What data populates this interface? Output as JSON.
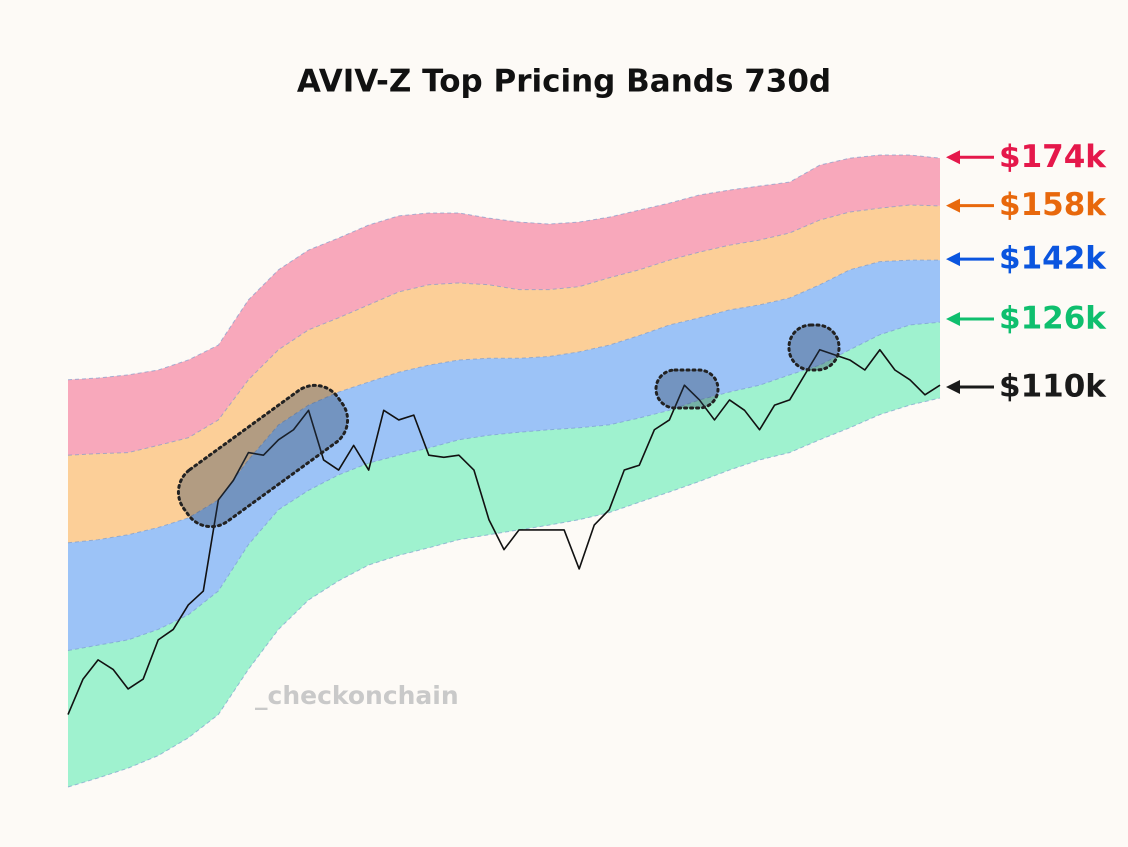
{
  "chart_data": {
    "type": "band-area",
    "title": "AVIV-Z Top Pricing Bands 730d",
    "watermark": "_checkonchain",
    "log_scale": true,
    "boundary_color": "#6f93c9",
    "fills": [
      "#9ff2cf",
      "#9cc3f7",
      "#fccf98",
      "#f8a8bb"
    ],
    "boundaries": [
      [
        49.5,
        50.4,
        51.4,
        52.7,
        54.6,
        57.2,
        62.6,
        67.8,
        71.9,
        74.7,
        77.1,
        78.6,
        79.8,
        81.1,
        81.9,
        82.7,
        83.5,
        84.4,
        85.6,
        87.4,
        89.2,
        91.1,
        93.2,
        95.1,
        96.5,
        99.0,
        101.4,
        104.1,
        106.1,
        107.6
      ],
      [
        65.0,
        65.7,
        66.4,
        67.8,
        69.8,
        73.2,
        80.3,
        86.1,
        89.5,
        92.3,
        94.5,
        96.0,
        97.4,
        99.0,
        99.9,
        100.5,
        101.0,
        101.4,
        102.0,
        103.4,
        105.0,
        107.2,
        108.9,
        110.4,
        112.7,
        114.9,
        118.5,
        122.1,
        124.5,
        125.2
      ],
      [
        80.6,
        81.1,
        81.9,
        83.1,
        84.7,
        87.8,
        95.1,
        102.0,
        106.1,
        108.9,
        111.1,
        113.3,
        114.9,
        116.1,
        116.5,
        116.5,
        116.9,
        118.0,
        119.6,
        121.9,
        124.5,
        126.3,
        128.3,
        129.6,
        131.4,
        134.9,
        139.0,
        141.3,
        141.7,
        141.7
      ],
      [
        96.0,
        96.3,
        96.5,
        97.9,
        99.4,
        103.0,
        111.6,
        118.5,
        123.3,
        126.3,
        129.6,
        133.0,
        134.9,
        135.4,
        134.9,
        133.6,
        133.6,
        134.4,
        136.8,
        139.0,
        141.7,
        144.0,
        146.0,
        147.5,
        149.6,
        153.5,
        156.0,
        157.2,
        158.2,
        157.9
      ],
      [
        111.6,
        112.0,
        112.7,
        113.8,
        116.1,
        119.6,
        130.9,
        139.0,
        144.6,
        148.1,
        152.0,
        154.8,
        155.7,
        155.7,
        154.1,
        152.9,
        152.3,
        152.9,
        154.4,
        156.6,
        158.8,
        161.4,
        163.0,
        164.3,
        165.6,
        171.3,
        173.7,
        174.8,
        174.8,
        173.7
      ]
    ],
    "price": {
      "color": "#111111",
      "values": [
        57.2,
        61.4,
        63.8,
        62.6,
        60.2,
        61.4,
        66.4,
        67.8,
        71.2,
        73.2,
        87.8,
        91.3,
        96.5,
        96.0,
        99.0,
        101.0,
        105.0,
        95.1,
        93.2,
        97.9,
        93.2,
        105.0,
        103.0,
        104.0,
        96.0,
        95.6,
        96.0,
        93.2,
        84.4,
        79.5,
        82.7,
        82.7,
        82.7,
        82.7,
        76.5,
        83.5,
        86.1,
        93.2,
        94.1,
        101.0,
        103.0,
        110.4,
        107.2,
        103.0,
        107.2,
        105.0,
        101.0,
        106.1,
        107.2,
        112.7,
        118.5,
        117.3,
        116.1,
        113.8,
        118.5,
        113.8,
        111.6,
        108.3,
        110.4
      ]
    },
    "levels": [
      {
        "value": 174,
        "label": "$174k",
        "color": "#e5184b"
      },
      {
        "value": 158,
        "label": "$158k",
        "color": "#e8680c"
      },
      {
        "value": 142,
        "label": "$142k",
        "color": "#0b55df"
      },
      {
        "value": 126,
        "label": "$126k",
        "color": "#0fbf6e"
      },
      {
        "value": 110,
        "label": "$110k",
        "color": "#1a1a1a"
      }
    ]
  }
}
